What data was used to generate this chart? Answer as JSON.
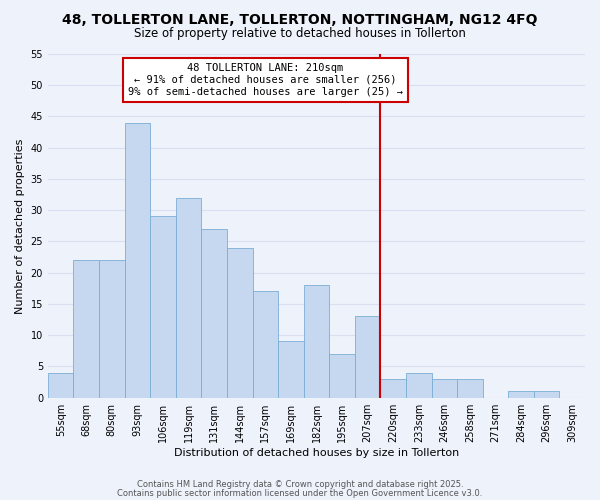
{
  "title": "48, TOLLERTON LANE, TOLLERTON, NOTTINGHAM, NG12 4FQ",
  "subtitle": "Size of property relative to detached houses in Tollerton",
  "xlabel": "Distribution of detached houses by size in Tollerton",
  "ylabel": "Number of detached properties",
  "bin_labels": [
    "55sqm",
    "68sqm",
    "80sqm",
    "93sqm",
    "106sqm",
    "119sqm",
    "131sqm",
    "144sqm",
    "157sqm",
    "169sqm",
    "182sqm",
    "195sqm",
    "207sqm",
    "220sqm",
    "233sqm",
    "246sqm",
    "258sqm",
    "271sqm",
    "284sqm",
    "296sqm",
    "309sqm"
  ],
  "bar_values": [
    4,
    22,
    22,
    44,
    29,
    32,
    27,
    24,
    17,
    9,
    18,
    7,
    13,
    3,
    4,
    3,
    3,
    0,
    1,
    1,
    0
  ],
  "bar_color": "#c5d8f0",
  "bar_edgecolor": "#7aaed4",
  "vline_x": 12.5,
  "vline_color": "#cc0000",
  "annotation_text": "48 TOLLERTON LANE: 210sqm\n← 91% of detached houses are smaller (256)\n9% of semi-detached houses are larger (25) →",
  "annotation_box_edgecolor": "#cc0000",
  "ylim": [
    0,
    55
  ],
  "yticks": [
    0,
    5,
    10,
    15,
    20,
    25,
    30,
    35,
    40,
    45,
    50,
    55
  ],
  "footer1": "Contains HM Land Registry data © Crown copyright and database right 2025.",
  "footer2": "Contains public sector information licensed under the Open Government Licence v3.0.",
  "bg_color": "#eef2fb",
  "grid_color": "#d8dff0",
  "title_fontsize": 10,
  "subtitle_fontsize": 8.5,
  "annotation_fontsize": 7.5,
  "footer_fontsize": 6,
  "axis_label_fontsize": 8,
  "tick_fontsize": 7
}
